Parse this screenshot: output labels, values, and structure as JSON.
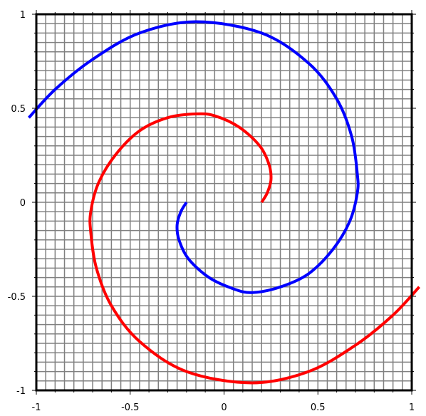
{
  "chart_data": {
    "type": "line",
    "title": "",
    "xlabel": "",
    "ylabel": "",
    "xlim": [
      -1,
      1
    ],
    "ylim": [
      -1,
      1
    ],
    "grid": true,
    "x_ticks": [
      -1,
      -0.5,
      0,
      0.5,
      1
    ],
    "x_tick_labels": [
      "-1",
      "-0.5",
      "0",
      "0.5",
      "1"
    ],
    "y_ticks": [
      1,
      0.5,
      0,
      -0.5,
      -1
    ],
    "y_tick_labels": [
      "1",
      "0.5",
      "0",
      "-0.5",
      "-1"
    ],
    "colors": {
      "series_1": "#0000ff",
      "series_2": "#ff0000",
      "grid": "#808080",
      "frame": "#000000"
    },
    "series": [
      {
        "color": "#0000ff",
        "points": [
          [
            -0.2,
            0.0
          ],
          [
            -0.23,
            -0.05
          ],
          [
            -0.25,
            -0.12
          ],
          [
            -0.24,
            -0.2
          ],
          [
            -0.19,
            -0.3
          ],
          [
            -0.08,
            -0.4
          ],
          [
            0.05,
            -0.46
          ],
          [
            0.15,
            -0.48
          ],
          [
            0.3,
            -0.45
          ],
          [
            0.45,
            -0.38
          ],
          [
            0.58,
            -0.25
          ],
          [
            0.67,
            -0.1
          ],
          [
            0.71,
            0.05
          ],
          [
            0.71,
            0.15
          ],
          [
            0.68,
            0.35
          ],
          [
            0.6,
            0.55
          ],
          [
            0.45,
            0.74
          ],
          [
            0.2,
            0.9
          ],
          [
            -0.15,
            0.96
          ],
          [
            -0.45,
            0.9
          ],
          [
            -0.7,
            0.76
          ],
          [
            -0.9,
            0.6
          ],
          [
            -1.04,
            0.45
          ]
        ]
      },
      {
        "color": "#ff0000",
        "points": [
          [
            0.2,
            0.0
          ],
          [
            0.23,
            0.05
          ],
          [
            0.25,
            0.12
          ],
          [
            0.24,
            0.2
          ],
          [
            0.19,
            0.3
          ],
          [
            0.08,
            0.4
          ],
          [
            -0.05,
            0.46
          ],
          [
            -0.15,
            0.47
          ],
          [
            -0.3,
            0.45
          ],
          [
            -0.45,
            0.38
          ],
          [
            -0.58,
            0.25
          ],
          [
            -0.67,
            0.1
          ],
          [
            -0.71,
            -0.05
          ],
          [
            -0.71,
            -0.16
          ],
          [
            -0.68,
            -0.35
          ],
          [
            -0.6,
            -0.55
          ],
          [
            -0.45,
            -0.74
          ],
          [
            -0.2,
            -0.9
          ],
          [
            0.15,
            -0.96
          ],
          [
            0.45,
            -0.9
          ],
          [
            0.7,
            -0.76
          ],
          [
            0.9,
            -0.6
          ],
          [
            1.04,
            -0.45
          ]
        ]
      }
    ]
  }
}
